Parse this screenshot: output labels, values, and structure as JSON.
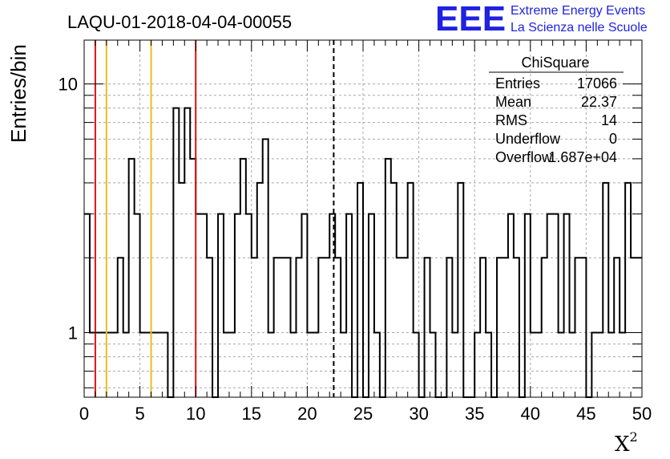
{
  "chart_data": {
    "type": "histogram",
    "title": "LAQU-01-2018-04-04-00055",
    "xlabel": "X",
    "xlabel_sup": "2",
    "ylabel": "Entries/bin",
    "xlim": [
      0,
      50
    ],
    "ylim": [
      0.55,
      15
    ],
    "yscale": "log",
    "grid": true,
    "bin_width": 0.5,
    "x_ticks": [
      "0",
      "5",
      "10",
      "15",
      "20",
      "25",
      "30",
      "35",
      "40",
      "45",
      "50"
    ],
    "y_ticks": [
      "1",
      "10"
    ],
    "bin_values": [
      3,
      1,
      1,
      1,
      1,
      1,
      2,
      1,
      5,
      3,
      1,
      1,
      1,
      1,
      1,
      0,
      8,
      4,
      8,
      5,
      3,
      3,
      2,
      0,
      3,
      1,
      1,
      3,
      5,
      3,
      2,
      4,
      6,
      1,
      2,
      2,
      2,
      1,
      2,
      3,
      1,
      1,
      2,
      2,
      3,
      2,
      1,
      3,
      0,
      4,
      0,
      3,
      1,
      0,
      5,
      4,
      2,
      2,
      4,
      1,
      0,
      2,
      1,
      0,
      0,
      2,
      1,
      4,
      0,
      0,
      1,
      2,
      1,
      0,
      2,
      2,
      3,
      2,
      0,
      3,
      1,
      1,
      2,
      3,
      3,
      1,
      3,
      1,
      2,
      2,
      0,
      1,
      1,
      4,
      1,
      2,
      1,
      4,
      2,
      2
    ],
    "vertical_lines": [
      {
        "x": 1.0,
        "color": "#dd1111",
        "style": "solid"
      },
      {
        "x": 2.0,
        "color": "#eebb22",
        "style": "solid"
      },
      {
        "x": 6.0,
        "color": "#eebb22",
        "style": "solid"
      },
      {
        "x": 10.0,
        "color": "#dd1111",
        "style": "solid"
      },
      {
        "x": 22.37,
        "color": "#000000",
        "style": "dashed"
      }
    ],
    "stats": {
      "name": "ChiSquare",
      "rows": [
        {
          "label": "Entries",
          "value": "17066"
        },
        {
          "label": "Mean",
          "value": "22.37"
        },
        {
          "label": "RMS",
          "value": "14"
        },
        {
          "label": "Underflow",
          "value": "0"
        },
        {
          "label": "Overflow",
          "value": "1.687e+04"
        }
      ]
    },
    "logo": {
      "letters": "EEE",
      "line1": "Extreme Energy Events",
      "line2": "La Scienza nelle Scuole",
      "color": "#1f22e0"
    }
  }
}
